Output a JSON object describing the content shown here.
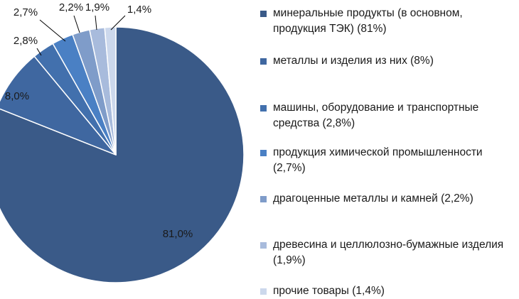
{
  "chart_data": {
    "type": "pie",
    "title": "",
    "categories": [
      "минеральные продукты (в основном, продукция ТЭК) (81%)",
      "металлы и изделия из них (8%)",
      "машины, оборудование и транспортные средства (2,8%)",
      "продукция химической промышленности (2,7%)",
      "драгоценные металлы и камней (2,2%)",
      "древесина и целлюлозно-бумажные изделия (1,9%)",
      "прочие товары (1,4%)"
    ],
    "values": [
      81.0,
      8.0,
      2.8,
      2.7,
      2.2,
      1.9,
      1.4
    ],
    "data_labels": [
      "81,0%",
      "8,0%",
      "2,8%",
      "2,7%",
      "2,2%",
      "1,9%",
      "1,4%"
    ],
    "colors": [
      "#3a5a88",
      "#3f67a0",
      "#4270ad",
      "#4a80c4",
      "#7f9cc9",
      "#a8bbdc",
      "#ccd8ec"
    ],
    "legend_position": "right",
    "start_angle": "12 o'clock",
    "direction": "clockwise"
  }
}
